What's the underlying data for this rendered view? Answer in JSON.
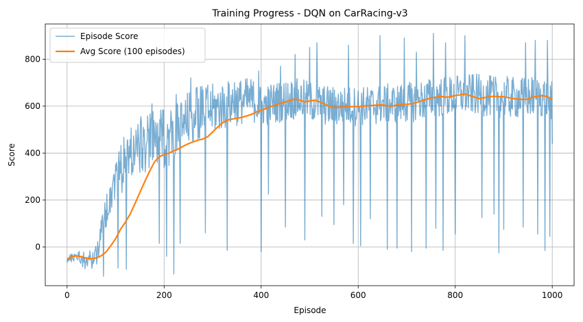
{
  "chart_data": {
    "type": "line",
    "title": "Training Progress - DQN on CarRacing-v3",
    "xlabel": "Episode",
    "ylabel": "Score",
    "xlim": [
      -45,
      1045
    ],
    "ylim": [
      -165,
      950
    ],
    "xticks": [
      0,
      200,
      400,
      600,
      800,
      1000
    ],
    "yticks": [
      0,
      200,
      400,
      600,
      800
    ],
    "grid": true,
    "legend_position": "top-left",
    "series": [
      {
        "name": "Episode Score",
        "color": "#1f77b4",
        "noisy": true,
        "x": [
          0,
          10,
          20,
          30,
          40,
          50,
          60,
          70,
          80,
          90,
          100,
          110,
          120,
          130,
          140,
          150,
          160,
          170,
          180,
          190,
          200,
          210,
          220,
          230,
          240,
          250,
          260,
          270,
          280,
          290,
          300,
          320,
          340,
          360,
          380,
          400,
          420,
          440,
          460,
          480,
          500,
          520,
          540,
          560,
          580,
          600,
          620,
          640,
          660,
          680,
          700,
          720,
          740,
          760,
          780,
          800,
          820,
          840,
          860,
          880,
          900,
          920,
          940,
          960,
          980,
          1000
        ],
        "values": [
          -55,
          -45,
          -35,
          -50,
          -60,
          -55,
          -30,
          60,
          150,
          230,
          300,
          330,
          370,
          400,
          420,
          430,
          440,
          450,
          455,
          460,
          465,
          470,
          480,
          500,
          520,
          540,
          560,
          570,
          575,
          580,
          585,
          600,
          610,
          620,
          630,
          600,
          610,
          620,
          630,
          630,
          620,
          610,
          600,
          600,
          600,
          600,
          600,
          605,
          610,
          610,
          615,
          620,
          630,
          640,
          640,
          645,
          650,
          650,
          645,
          640,
          640,
          635,
          635,
          640,
          640,
          630
        ],
        "spikes": [
          [
            75,
            -125
          ],
          [
            105,
            -90
          ],
          [
            122,
            -95
          ],
          [
            190,
            15
          ],
          [
            205,
            -40
          ],
          [
            220,
            -115
          ],
          [
            233,
            15
          ],
          [
            285,
            60
          ],
          [
            330,
            -15
          ],
          [
            400,
            -20
          ],
          [
            415,
            225
          ],
          [
            450,
            85
          ],
          [
            490,
            30
          ],
          [
            525,
            130
          ],
          [
            550,
            95
          ],
          [
            570,
            180
          ],
          [
            590,
            15
          ],
          [
            605,
            5
          ],
          [
            625,
            120
          ],
          [
            660,
            -10
          ],
          [
            680,
            -5
          ],
          [
            710,
            -20
          ],
          [
            740,
            -5
          ],
          [
            760,
            80
          ],
          [
            775,
            -15
          ],
          [
            800,
            55
          ],
          [
            855,
            125
          ],
          [
            880,
            140
          ],
          [
            890,
            -25
          ],
          [
            900,
            75
          ],
          [
            940,
            85
          ],
          [
            970,
            55
          ],
          [
            985,
            -15
          ],
          [
            995,
            45
          ],
          [
            1000,
            440
          ]
        ],
        "peaks": [
          [
            175,
            610
          ],
          [
            225,
            650
          ],
          [
            255,
            720
          ],
          [
            290,
            690
          ],
          [
            345,
            700
          ],
          [
            395,
            750
          ],
          [
            440,
            770
          ],
          [
            470,
            820
          ],
          [
            500,
            850
          ],
          [
            515,
            870
          ],
          [
            580,
            860
          ],
          [
            645,
            900
          ],
          [
            695,
            890
          ],
          [
            720,
            830
          ],
          [
            755,
            910
          ],
          [
            780,
            870
          ],
          [
            820,
            900
          ],
          [
            855,
            900
          ],
          [
            880,
            880
          ],
          [
            900,
            905
          ],
          [
            945,
            870
          ],
          [
            965,
            880
          ],
          [
            990,
            880
          ],
          [
            1000,
            870
          ]
        ],
        "noise_amplitude": [
          [
            0,
            12
          ],
          [
            70,
            60
          ],
          [
            120,
            120
          ],
          [
            200,
            130
          ],
          [
            300,
            110
          ],
          [
            400,
            90
          ],
          [
            600,
            85
          ],
          [
            1000,
            90
          ]
        ],
        "seed": 20240611
      },
      {
        "name": "Avg Score (100 episodes)",
        "color": "#ff7f0e",
        "x": [
          0,
          10,
          20,
          30,
          40,
          50,
          60,
          70,
          80,
          90,
          100,
          110,
          120,
          130,
          140,
          150,
          160,
          170,
          180,
          190,
          200,
          210,
          220,
          230,
          240,
          250,
          260,
          270,
          280,
          290,
          300,
          310,
          320,
          330,
          340,
          350,
          360,
          370,
          380,
          390,
          400,
          410,
          420,
          430,
          440,
          450,
          460,
          470,
          480,
          490,
          500,
          510,
          520,
          530,
          540,
          550,
          560,
          570,
          580,
          590,
          600,
          610,
          620,
          630,
          640,
          650,
          660,
          670,
          680,
          690,
          700,
          710,
          720,
          730,
          740,
          750,
          760,
          770,
          780,
          790,
          800,
          810,
          820,
          830,
          840,
          850,
          860,
          870,
          880,
          890,
          900,
          910,
          920,
          930,
          940,
          950,
          960,
          970,
          980,
          990,
          1000
        ],
        "values": [
          -55,
          -40,
          -38,
          -42,
          -48,
          -50,
          -47,
          -38,
          -22,
          5,
          35,
          75,
          105,
          140,
          185,
          232,
          278,
          322,
          362,
          385,
          393,
          400,
          410,
          418,
          430,
          440,
          448,
          455,
          460,
          470,
          490,
          510,
          528,
          540,
          545,
          548,
          552,
          558,
          565,
          575,
          582,
          590,
          598,
          605,
          612,
          618,
          625,
          630,
          625,
          618,
          622,
          625,
          618,
          610,
          600,
          594,
          595,
          597,
          598,
          598,
          598,
          600,
          602,
          603,
          605,
          605,
          602,
          600,
          605,
          608,
          608,
          610,
          615,
          622,
          628,
          635,
          638,
          642,
          638,
          640,
          645,
          648,
          652,
          645,
          638,
          632,
          636,
          640,
          642,
          640,
          640,
          636,
          632,
          630,
          628,
          630,
          638,
          642,
          645,
          640,
          628
        ]
      }
    ]
  }
}
